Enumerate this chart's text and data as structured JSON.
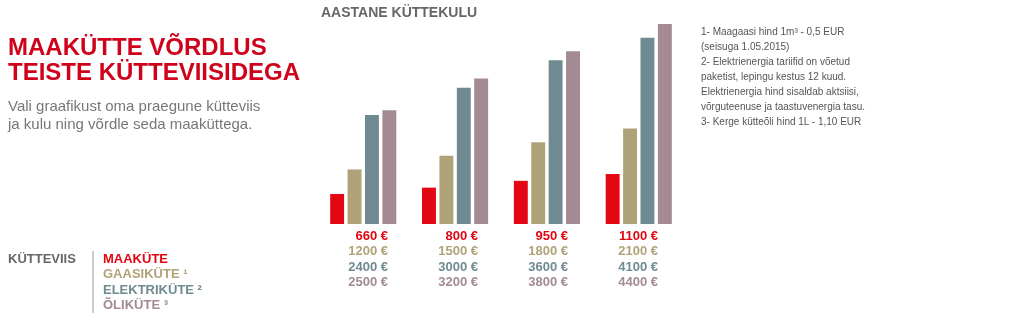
{
  "chart_data": {
    "type": "bar",
    "title": "MAAKÜTTE VÕRDLUS\nTEISTE KÜTTEVIISIDEGA",
    "subtitle": "Vali graafikust oma praegune kütteviis\nja kulu ning võrdle seda maaküttega.",
    "ylabel": "AASTANE KÜTTEKULU",
    "legend_title": "KÜTTEVIIS",
    "categories": [
      null,
      null,
      null,
      null
    ],
    "series": [
      {
        "name": "MAAKÜTE",
        "color": "#e30613",
        "values": [
          660,
          800,
          950,
          1100
        ],
        "value_labels": [
          "660 €",
          "800 €",
          "950 €",
          "1100 €"
        ]
      },
      {
        "name": "GAASIKÜTE ¹",
        "color": "#b0a278",
        "values": [
          1200,
          1500,
          1800,
          2100
        ],
        "value_labels": [
          "1200 €",
          "1500 €",
          "1800 €",
          "2100 €"
        ]
      },
      {
        "name": "ELEKTRIKÜTE ²",
        "color": "#6f8b91",
        "values": [
          2400,
          3000,
          3600,
          4100
        ],
        "value_labels": [
          "2400 €",
          "3000 €",
          "3600 €",
          "4100 €"
        ]
      },
      {
        "name": "ÕLIKÜTE ³",
        "color": "#a38a93",
        "values": [
          2500,
          3200,
          3800,
          4400
        ],
        "value_labels": [
          "2500 €",
          "3200 €",
          "3800 €",
          "4400 €"
        ]
      }
    ],
    "annotations": [
      "1- Maagaasi hind 1m³ - 0,5 EUR (seisuga 1.05.2015)",
      "2- Elektrienergia tariifid on võetud paketist, lepingu kestus 12 kuud. Elektrienergia hind sisaldab aktsiisi, võrguteenuse ja taastuvenergia tasu.",
      "3- Kerge kütteõli hind 1L - 1,10 EUR"
    ]
  }
}
